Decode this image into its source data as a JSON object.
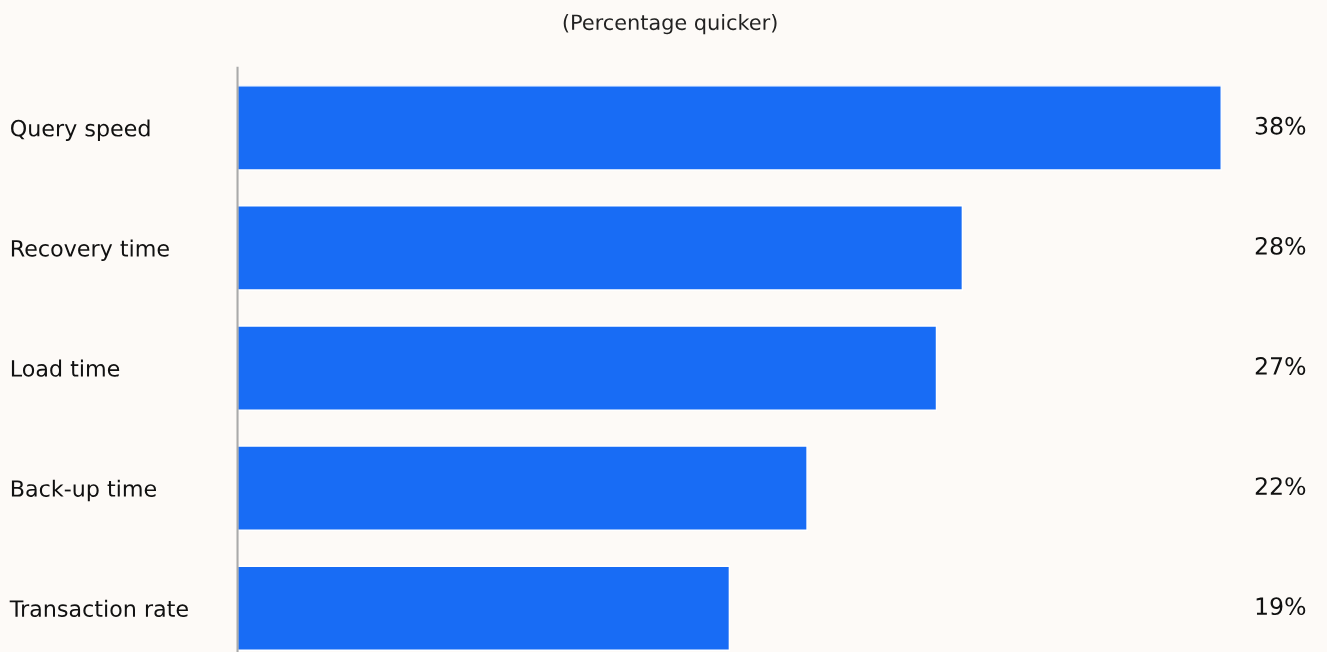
{
  "chart_data": {
    "type": "bar",
    "orientation": "horizontal",
    "title": "(Percentage quicker)",
    "categories": [
      "Query speed",
      "Recovery time",
      "Load time",
      "Back-up time",
      "Transaction rate"
    ],
    "values": [
      38,
      28,
      27,
      22,
      19
    ],
    "value_labels": [
      "38%",
      "28%",
      "27%",
      "22%",
      "19%"
    ],
    "color": "#186cf5",
    "tick_labels": "y",
    "grid": false,
    "legend": false
  }
}
